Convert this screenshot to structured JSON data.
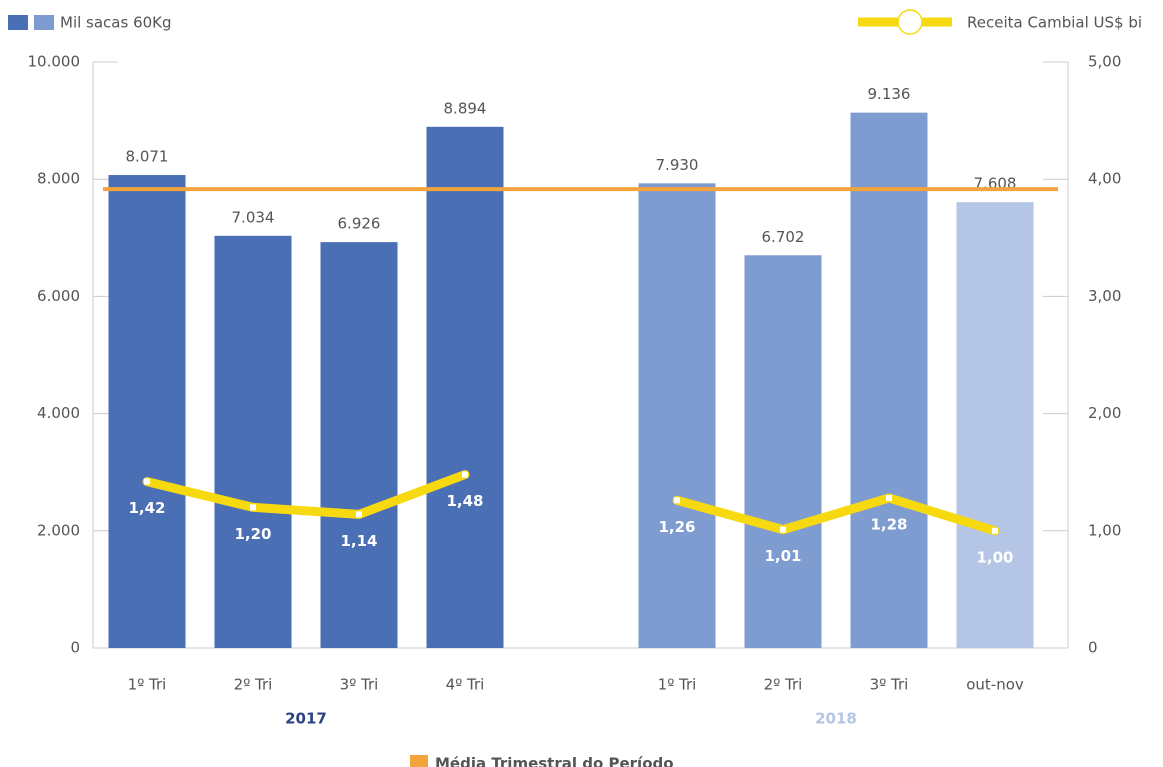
{
  "chart_data": {
    "type": "bar-line",
    "categories": [
      "1º Tri",
      "2º Tri",
      "3º Tri",
      "4º Tri",
      null,
      "1º Tri",
      "2º Tri",
      "3º Tri",
      "out-nov"
    ],
    "groups": [
      {
        "label": "2017",
        "color": "#2b4285"
      },
      {
        "label": "2018",
        "color": "#b4c5e6"
      }
    ],
    "series": [
      {
        "name": "Mil sacas 60Kg",
        "type": "bar",
        "legend_colors": [
          "#4a6fb5",
          "#7f9cd0"
        ],
        "colors": [
          "#4a6fb5",
          "#4a6fb5",
          "#4a6fb5",
          "#4a6fb5",
          null,
          "#7f9cd0",
          "#7f9cd0",
          "#7f9cd0",
          "#b4c5e6"
        ],
        "values": [
          8071,
          7034,
          6926,
          8894,
          null,
          7930,
          6702,
          9136,
          7608
        ],
        "value_labels": [
          "8.071",
          "7.034",
          "6.926",
          "8.894",
          null,
          "7.930",
          "6.702",
          "9.136",
          "7.608"
        ]
      },
      {
        "name": "Receita Cambial US$ bi",
        "type": "line",
        "axis": "y2",
        "color": "#f7d90f",
        "values": [
          1.42,
          1.2,
          1.14,
          1.48,
          null,
          1.26,
          1.01,
          1.28,
          1.0
        ],
        "value_labels": [
          "1,42",
          "1,20",
          "1,14",
          "1,48",
          null,
          "1,26",
          "1,01",
          "1,28",
          "1,00"
        ]
      }
    ],
    "average": {
      "name": "Média Trimestral do Período",
      "value": 7830,
      "color": "#f5a33c"
    },
    "ylim": [
      0,
      10000
    ],
    "yticks": [
      0,
      {
        "value": 2000,
        "label": "2.000"
      },
      {
        "value": 4000,
        "label": "4.000"
      },
      {
        "value": 6000,
        "label": "6.000"
      },
      {
        "value": 8000,
        "label": "8.000"
      },
      {
        "value": 10000,
        "label": "10.000"
      }
    ],
    "y2lim": [
      0,
      5
    ],
    "y2ticks": [
      0,
      {
        "value": 1,
        "label": "1,00"
      },
      {
        "value": 2,
        "label": "2,00"
      },
      {
        "value": 3,
        "label": "3,00"
      },
      {
        "value": 4,
        "label": "4,00"
      },
      {
        "value": 5,
        "label": "5,00"
      }
    ]
  }
}
